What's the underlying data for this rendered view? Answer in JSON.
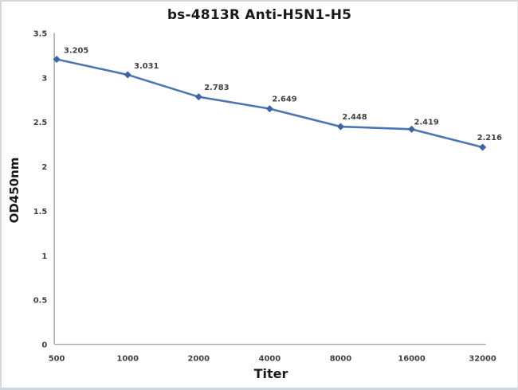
{
  "chart_data": {
    "type": "line",
    "title": "bs-4813R Anti-H5N1-H5",
    "xlabel": "Titer",
    "ylabel": "OD450nm",
    "categories": [
      "500",
      "1000",
      "2000",
      "4000",
      "8000",
      "16000",
      "32000"
    ],
    "values": [
      3.205,
      3.031,
      2.783,
      2.649,
      2.448,
      2.419,
      2.216
    ],
    "point_labels": [
      "3.205",
      "3.031",
      "2.783",
      "2.649",
      "2.448",
      "2.419",
      "2.216"
    ],
    "ylim": [
      0,
      3.5
    ],
    "yticks": [
      "0",
      "0.5",
      "1",
      "1.5",
      "2",
      "2.5",
      "3",
      "3.5"
    ],
    "grid": "off",
    "legend": "none",
    "marker_shape": "diamond",
    "line_color": "#4C76B2",
    "marker_color": "#3D64A6",
    "data_label_color": "#3F3F3F",
    "tick_label_color": "#3F3F3F",
    "axis_line_color": "#A6A6A6",
    "title_color": "#1A1A1A"
  }
}
